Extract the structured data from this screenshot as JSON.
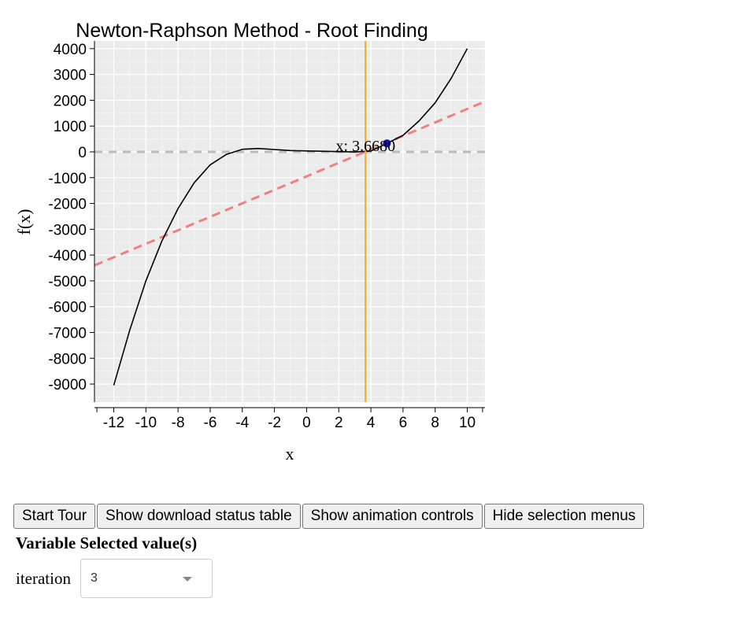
{
  "chart_data": {
    "type": "line",
    "title": "Newton-Raphson Method - Root Finding",
    "xlabel": "x",
    "ylabel": "f(x)",
    "xlim": [
      -13.2,
      11.1
    ],
    "ylim": [
      -9700,
      4300
    ],
    "xticks": [
      -12,
      -10,
      -8,
      -6,
      -4,
      -2,
      0,
      2,
      4,
      6,
      8,
      10
    ],
    "yticks": [
      4000,
      3000,
      2000,
      1000,
      0,
      -1000,
      -2000,
      -3000,
      -4000,
      -5000,
      -6000,
      -7000,
      -8000,
      -9000
    ],
    "grid": true,
    "series": [
      {
        "x": [
          -12,
          -11,
          -10,
          -9,
          -8,
          -7,
          -6,
          -5,
          -4,
          -3,
          -2,
          -1,
          0,
          1,
          2,
          3,
          4,
          5,
          6,
          7,
          8,
          9,
          10
        ],
        "y": [
          -9050,
          -6900,
          -5000,
          -3450,
          -2200,
          -1200,
          -500,
          -100,
          100,
          130,
          90,
          50,
          35,
          25,
          10,
          -5,
          30,
          330,
          640,
          1200,
          1900,
          2850,
          4000
        ],
        "color": "#000000",
        "style": "solid"
      },
      {
        "x": [
          -13.2,
          11.1
        ],
        "y": [
          -4400,
          1950
        ],
        "color": "#f08080",
        "style": "dashed"
      },
      {
        "x": [
          -13.2,
          11.1
        ],
        "y": [
          0,
          0
        ],
        "color": "#bbbbbb",
        "style": "dashed"
      }
    ],
    "vertical_line": {
      "x": 3.668,
      "color": "#f5a623"
    },
    "current_point": {
      "x": 5,
      "y": 330,
      "color": "#1010c0"
    },
    "annotation": {
      "text": "x: 3.6680",
      "x": 3.668,
      "y": 0
    }
  },
  "toolbar": {
    "start_tour": "Start Tour",
    "show_download": "Show download status table",
    "show_animation": "Show animation controls",
    "hide_selection": "Hide selection menus"
  },
  "selection": {
    "header": "Variable Selected value(s)",
    "variable": "iteration",
    "value": "3"
  }
}
